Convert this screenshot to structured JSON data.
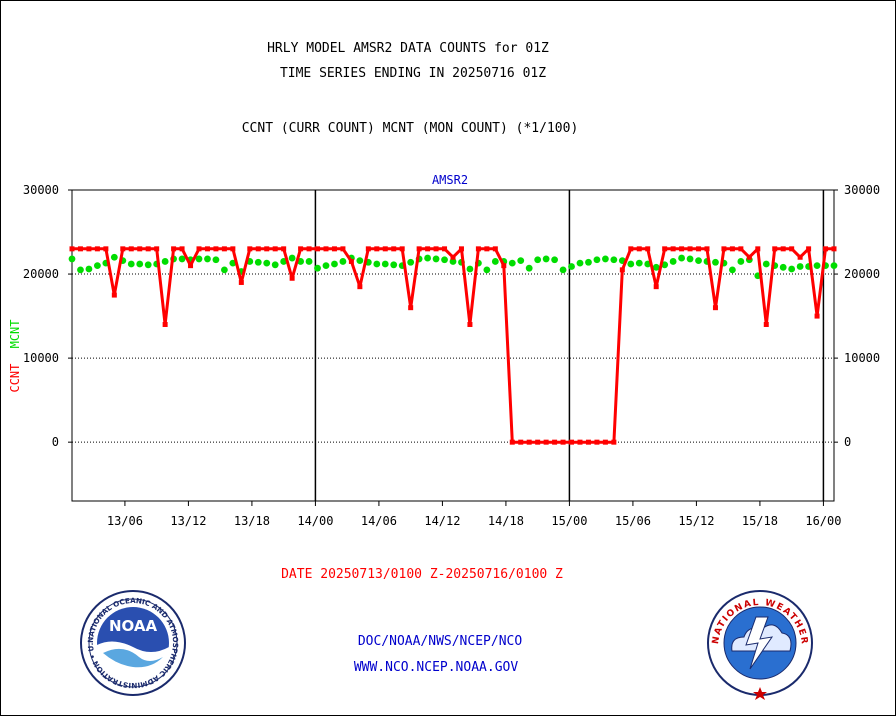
{
  "header": {
    "title_line1": "HRLY MODEL AMSR2 DATA COUNTS for 01Z",
    "title_line2": "TIME SERIES ENDING IN 20250716 01Z",
    "subtitle": "CCNT (CURR COUNT) MCNT (MON COUNT) (*1/100)"
  },
  "footer": {
    "date_range": "DATE 20250713/0100 Z-20250716/0100 Z",
    "org_line": "DOC/NOAA/NWS/NCEP/NCO",
    "url_line": "WWW.NCO.NCEP.NOAA.GOV"
  },
  "logos": {
    "noaa": {
      "center_text": "NOAA",
      "ring_text": "NATIONAL OCEANIC AND ATMOSPHERIC ADMINISTRATION • U.S. DEPARTMENT OF COMMERCE •"
    },
    "nws": {
      "ring_text": "NATIONAL WEATHER SERVICE"
    }
  },
  "colors": {
    "ccnt": "#ff0000",
    "mcnt": "#00dd00",
    "title": "#000000",
    "plot_label": "#0000cc",
    "footer_date": "#ff0000",
    "footer_links": "#0000cc"
  },
  "chart_data": {
    "type": "line",
    "title": "AMSR2",
    "ylabel_left_parts": [
      {
        "text": "CCNT",
        "color": "#ff0000"
      },
      {
        "text": "MCNT",
        "color": "#00dd00"
      }
    ],
    "ylim": [
      -7000,
      30000
    ],
    "yticks": [
      0,
      10000,
      20000,
      30000
    ],
    "ytick_labels": [
      "0",
      "10000",
      "20000",
      "30000"
    ],
    "x_start": "2025-07-13 01:00",
    "x_end": "2025-07-16 01:00",
    "xticks": [
      {
        "label": "13/06",
        "time": "2025-07-13 06:00"
      },
      {
        "label": "13/12",
        "time": "2025-07-13 12:00"
      },
      {
        "label": "13/18",
        "time": "2025-07-13 18:00"
      },
      {
        "label": "14/00",
        "time": "2025-07-14 00:00"
      },
      {
        "label": "14/06",
        "time": "2025-07-14 06:00"
      },
      {
        "label": "14/12",
        "time": "2025-07-14 12:00"
      },
      {
        "label": "14/18",
        "time": "2025-07-14 18:00"
      },
      {
        "label": "15/00",
        "time": "2025-07-15 00:00"
      },
      {
        "label": "15/06",
        "time": "2025-07-15 06:00"
      },
      {
        "label": "15/12",
        "time": "2025-07-15 12:00"
      },
      {
        "label": "15/18",
        "time": "2025-07-15 18:00"
      },
      {
        "label": "16/00",
        "time": "2025-07-16 00:00"
      }
    ],
    "day_boundaries": [
      "2025-07-14 00:00",
      "2025-07-15 00:00",
      "2025-07-16 00:00"
    ],
    "grid": "horizontal",
    "series": [
      {
        "name": "CCNT",
        "color": "#ff0000",
        "values": [
          23000,
          23000,
          23000,
          23000,
          23000,
          17500,
          23000,
          23000,
          23000,
          23000,
          23000,
          14000,
          23000,
          23000,
          21000,
          23000,
          23000,
          23000,
          23000,
          23000,
          19000,
          23000,
          23000,
          23000,
          23000,
          23000,
          19500,
          23000,
          23000,
          23000,
          23000,
          23000,
          23000,
          21500,
          18500,
          23000,
          23000,
          23000,
          23000,
          23000,
          16000,
          23000,
          23000,
          23000,
          23000,
          22000,
          23000,
          14000,
          23000,
          23000,
          23000,
          21000,
          0,
          0,
          0,
          0,
          0,
          0,
          0,
          0,
          0,
          0,
          0,
          0,
          0,
          20500,
          23000,
          23000,
          23000,
          18500,
          23000,
          23000,
          23000,
          23000,
          23000,
          23000,
          16000,
          23000,
          23000,
          23000,
          22000,
          23000,
          14000,
          23000,
          23000,
          23000,
          22000,
          23000,
          15000,
          23000,
          23000
        ]
      },
      {
        "name": "MCNT",
        "color": "#00dd00",
        "values": [
          21800,
          20500,
          20600,
          21000,
          21300,
          22000,
          21600,
          21200,
          21200,
          21100,
          21200,
          21500,
          21800,
          21800,
          21700,
          21800,
          21800,
          21700,
          20500,
          21300,
          20300,
          21500,
          21400,
          21300,
          21100,
          21500,
          21900,
          21500,
          21500,
          20700,
          21000,
          21200,
          21500,
          21900,
          21600,
          21400,
          21200,
          21200,
          21100,
          21000,
          21400,
          21800,
          21900,
          21800,
          21700,
          21500,
          21400,
          20600,
          21300,
          20500,
          21500,
          21500,
          21300,
          21600,
          20700,
          21700,
          21800,
          21700,
          20500,
          20900,
          21300,
          21400,
          21700,
          21800,
          21700,
          21600,
          21200,
          21300,
          21200,
          20800,
          21100,
          21500,
          21900,
          21800,
          21600,
          21500,
          21400,
          21300,
          20500,
          21500,
          21700,
          19800,
          21200,
          21000,
          20800,
          20600,
          20900,
          20900,
          21000,
          21000,
          21000
        ]
      }
    ]
  }
}
